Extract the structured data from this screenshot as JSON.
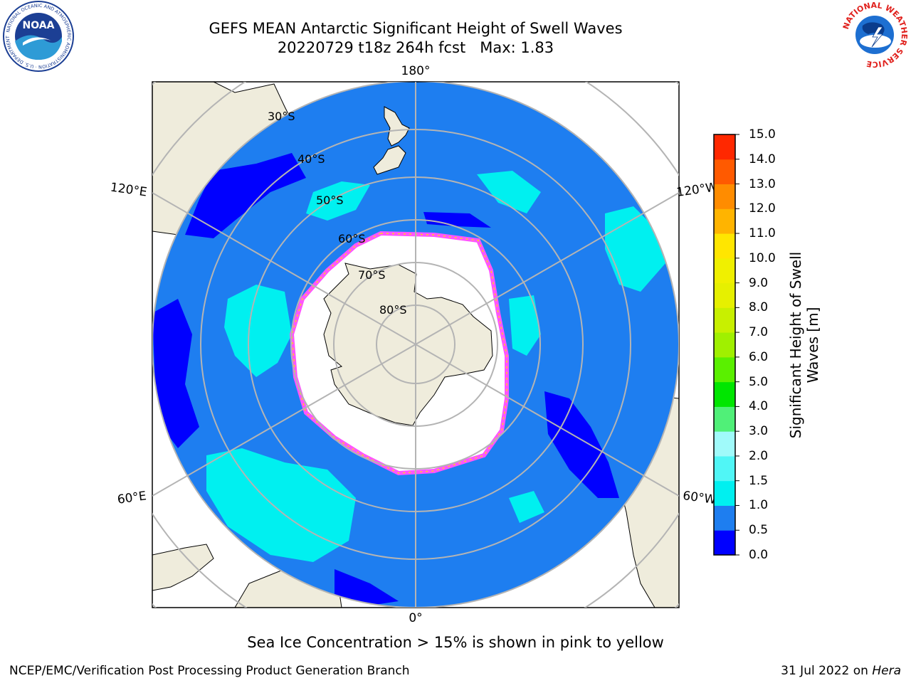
{
  "header": {
    "title": "GEFS MEAN Antarctic Significant Height of Swell Waves",
    "subtitle": "20220729 t18z 264h fcst   Max: 1.83"
  },
  "logos": {
    "noaa_text": "NOAA",
    "noaa_ring_text": "NATIONAL OCEANIC AND ATMOSPHERIC ADMINISTRATION · U.S. DEPARTMENT OF COMMERCE",
    "nws_ring_text": "NATIONAL WEATHER SERVICE"
  },
  "map": {
    "lon_labels": {
      "top": "180°",
      "bottom": "0°",
      "upper_left": "120°E",
      "lower_left": "60°E",
      "upper_right": "120°W",
      "lower_right": "60°W"
    },
    "lat_labels": [
      "30°S",
      "40°S",
      "50°S",
      "60°S",
      "70°S",
      "80°S"
    ],
    "colors": {
      "land": "#efecdc",
      "ocean_base": "#1e7ef0",
      "swell_low": "#0000ff",
      "swell_mid": "#00f0f0",
      "ice_edge_pink": "#ff55ff",
      "ice_edge_yellow": "#ffd21e",
      "grid": "#b4b4b4"
    }
  },
  "colorbar": {
    "label": "Significant Height of Swell Waves [m]",
    "ticks": [
      "15.0",
      "14.0",
      "13.0",
      "12.0",
      "11.0",
      "10.0",
      "9.0",
      "8.0",
      "7.0",
      "6.0",
      "5.0",
      "4.0",
      "3.0",
      "2.0",
      "1.5",
      "1.0",
      "0.5",
      "0.0"
    ],
    "colors": [
      "#0000ff",
      "#1e7ef0",
      "#00f0f0",
      "#50f6f6",
      "#a0fafa",
      "#50f078",
      "#00e600",
      "#5af000",
      "#a0f000",
      "#c8f000",
      "#e6f000",
      "#f0f000",
      "#ffe600",
      "#ffb400",
      "#ff8c00",
      "#ff5a00",
      "#ff2800",
      "#ff0000"
    ]
  },
  "note": "Sea Ice Concentration > 15% is shown in pink to yellow",
  "footer": {
    "left": "NCEP/EMC/Verification Post Processing Product Generation Branch",
    "right_date": "31 Jul 2022 on",
    "right_machine": "Hera"
  }
}
